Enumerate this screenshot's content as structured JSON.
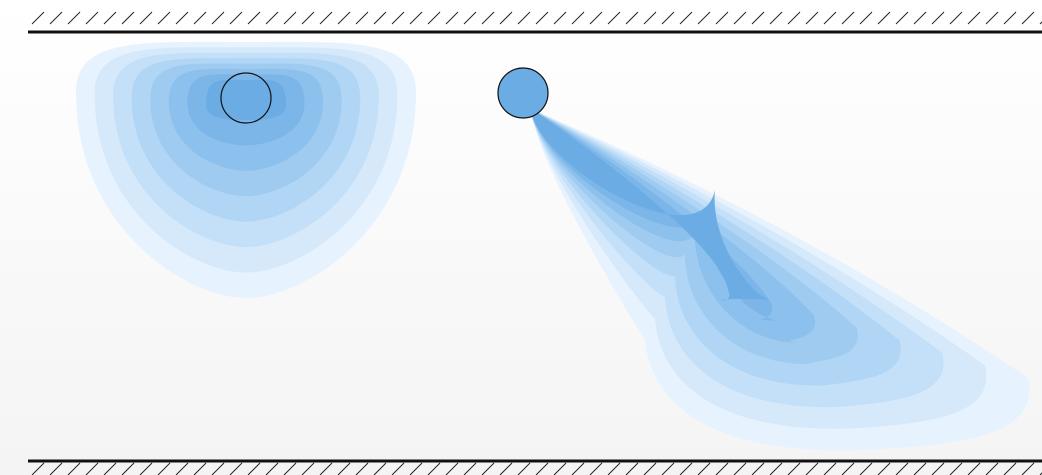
{
  "diagram": {
    "colors": {
      "background_top": "#ffffff",
      "background_bottom": "#f4f4f4",
      "wall_line": "#111111",
      "hatch": "#222222",
      "plume_levels": [
        "#e6f2fd",
        "#d5e9fb",
        "#c3e0f8",
        "#b1d6f5",
        "#9fcbf1",
        "#8dc1ed",
        "#7cb6e8",
        "#6aace3"
      ],
      "source_fill": "#6aace3",
      "source_outline": "#111111"
    },
    "walls": [
      "top-wall",
      "bottom-wall"
    ],
    "sources": [
      "source-left",
      "source-right"
    ],
    "plumes": [
      "plume-left-contours",
      "plume-right-contours"
    ]
  }
}
